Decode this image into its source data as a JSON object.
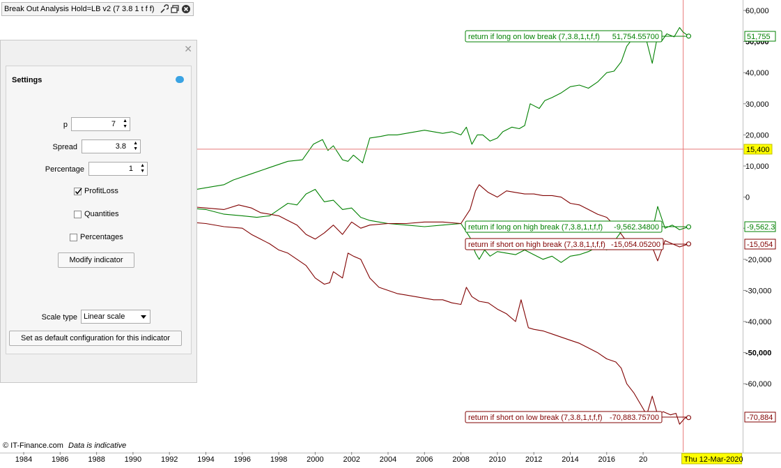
{
  "window": {
    "title": "Break Out Analysis Hold=LB v2 (7 3.8 1 t f f)"
  },
  "settings": {
    "title": "Settings",
    "p_label": "p",
    "p_value": "7",
    "spread_label": "Spread",
    "spread_value": "3.8",
    "percentage_label": "Percentage",
    "percentage_value": "1",
    "profitloss_label": "ProfitLoss",
    "profitloss_checked": true,
    "quantities_label": "Quantities",
    "quantities_checked": false,
    "percentages_label": "Percentages",
    "percentages_checked": false,
    "modify_button": "Modify indicator",
    "scale_type_label": "Scale type",
    "scale_type_value": "Linear scale",
    "default_button": "Set as default configuration for this indicator"
  },
  "footer": {
    "copyright": "© IT-Finance.com",
    "note": "Data is indicative"
  },
  "chart_data": {
    "type": "line",
    "x_ticks": [
      "1984",
      "1986",
      "1988",
      "1990",
      "1992",
      "1994",
      "1996",
      "1998",
      "2000",
      "2002",
      "2004",
      "2006",
      "2008",
      "2010",
      "2012",
      "2014",
      "2016",
      "20"
    ],
    "x_range": [
      1983,
      2021.2
    ],
    "cursor_date_label": "Thu 12-Mar-2020",
    "y_ticks": [
      "60,000",
      "50,000",
      "40,000",
      "30,000",
      "20,000",
      "10,000",
      "0",
      "-10,000",
      "-20,000",
      "-30,000",
      "-40,000",
      "-50,000",
      "-60,000"
    ],
    "y_tick_values": [
      60000,
      50000,
      40000,
      30000,
      20000,
      10000,
      0,
      -10000,
      -20000,
      -30000,
      -40000,
      -50000,
      -60000
    ],
    "ylim": [
      -75000,
      62000
    ],
    "crosshair": {
      "y": 15400,
      "label": "15,400",
      "x": 2020.2
    },
    "colors": {
      "green": "#008000",
      "red": "#800000",
      "crosshair": "#e87878",
      "highlight": "#ffff00"
    },
    "series": [
      {
        "name": "return if long on low break (7,3.8,1,t,f,f)",
        "value_text": "51,754.55700",
        "last_label": "51,755",
        "color": "#008000",
        "x": [
          1993.0,
          1994.0,
          1995.0,
          1995.5,
          1996.5,
          1997.5,
          1998.5,
          1999.3,
          1999.9,
          2000.4,
          2000.7,
          2001.0,
          2001.5,
          2001.8,
          2002.1,
          2002.6,
          2003.0,
          2003.6,
          2004.0,
          2004.5,
          2005.0,
          2005.5,
          2006.0,
          2006.5,
          2007.0,
          2007.5,
          2008.0,
          2008.3,
          2008.6,
          2008.9,
          2009.2,
          2009.6,
          2010.0,
          2010.3,
          2010.8,
          2011.2,
          2011.5,
          2011.8,
          2012.3,
          2012.6,
          2013.0,
          2013.5,
          2014.0,
          2014.5,
          2015.0,
          2015.5,
          2016.0,
          2016.4,
          2016.8,
          2017.1,
          2017.3,
          2017.8,
          2018.2,
          2018.5,
          2018.8,
          2019.0,
          2019.3,
          2019.7,
          2020.0,
          2020.2,
          2020.5
        ],
        "y": [
          2000,
          3000,
          4000,
          5500,
          7500,
          9500,
          11500,
          12000,
          17000,
          18500,
          15000,
          16500,
          12000,
          11500,
          13500,
          11000,
          19000,
          19500,
          20000,
          20000,
          20500,
          21000,
          21500,
          21000,
          20500,
          21000,
          20000,
          22500,
          17000,
          20000,
          20000,
          18000,
          19000,
          21000,
          22500,
          22000,
          23000,
          30000,
          28500,
          31000,
          32000,
          33500,
          35500,
          36000,
          35000,
          37000,
          40000,
          40500,
          43500,
          48500,
          50000,
          51000,
          50000,
          43000,
          52000,
          50000,
          52500,
          51500,
          54500,
          53000,
          51755
        ]
      },
      {
        "name": "return if long on high break (7,3.8,1,t,f,f)",
        "value_text": "-9,562.34800",
        "last_label": "-9,562.3",
        "color": "#008000",
        "x": [
          1993.0,
          1994.0,
          1995.0,
          1996.0,
          1996.8,
          1997.5,
          1998.0,
          1998.5,
          1999.0,
          1999.5,
          2000.0,
          2000.5,
          2001.0,
          2001.5,
          2002.0,
          2002.5,
          2003.0,
          2003.5,
          2004.0,
          2005.0,
          2006.0,
          2007.0,
          2008.0,
          2008.5,
          2008.8,
          2009.0,
          2009.3,
          2009.6,
          2010.0,
          2010.5,
          2011.0,
          2011.5,
          2012.0,
          2012.5,
          2013.0,
          2013.5,
          2014.0,
          2014.5,
          2015.0,
          2015.5,
          2016.0,
          2016.5,
          2017.0,
          2017.5,
          2018.0,
          2018.5,
          2018.8,
          2019.2,
          2019.6,
          2020.0,
          2020.5
        ],
        "y": [
          -3500,
          -4000,
          -5500,
          -6000,
          -6500,
          -6000,
          -4000,
          -2000,
          -2500,
          1000,
          2500,
          -1500,
          -1000,
          -4000,
          -3500,
          -6500,
          -7500,
          -8000,
          -8500,
          -9000,
          -9500,
          -9000,
          -8500,
          -13000,
          -18000,
          -20000,
          -17000,
          -19000,
          -17500,
          -18000,
          -18500,
          -17000,
          -18500,
          -20000,
          -19000,
          -21000,
          -19000,
          -18500,
          -17500,
          -16000,
          -17000,
          -13500,
          -9500,
          -10000,
          -9500,
          -11000,
          -3000,
          -10000,
          -9000,
          -10500,
          -9562
        ]
      },
      {
        "name": "return if short on high break (7,3.8,1,t,f,f)",
        "value_text": "-15,054.05200",
        "last_label": "-15,054",
        "color": "#800000",
        "x": [
          1993.0,
          1994.0,
          1995.0,
          1995.8,
          1996.5,
          1997.0,
          1998.0,
          1998.5,
          1999.0,
          1999.5,
          2000.0,
          2000.5,
          2001.0,
          2001.5,
          2002.0,
          2002.5,
          2003.0,
          2004.0,
          2005.0,
          2006.0,
          2007.0,
          2008.0,
          2008.5,
          2008.8,
          2009.0,
          2009.5,
          2010.0,
          2010.5,
          2011.0,
          2011.5,
          2012.0,
          2012.5,
          2013.0,
          2013.5,
          2014.0,
          2014.5,
          2015.0,
          2015.5,
          2016.0,
          2016.5,
          2017.0,
          2017.5,
          2018.0,
          2018.5,
          2018.8,
          2019.2,
          2019.6,
          2020.0,
          2020.5
        ],
        "y": [
          -3000,
          -3500,
          -4000,
          -2500,
          -3500,
          -5000,
          -6000,
          -7500,
          -9000,
          -12000,
          -13500,
          -11500,
          -9000,
          -12000,
          -8000,
          -10000,
          -9000,
          -8500,
          -8500,
          -8000,
          -8000,
          -8500,
          -4000,
          2000,
          4000,
          1500,
          0,
          2000,
          1500,
          1000,
          1000,
          500,
          500,
          0,
          -2000,
          -2500,
          -4000,
          -5500,
          -6500,
          -9500,
          -13500,
          -14000,
          -15000,
          -16000,
          -20500,
          -14000,
          -15000,
          -16000,
          -15054
        ]
      },
      {
        "name": "return if short on low break (7,3.8,1,t,f,f)",
        "value_text": "-70,883.75700",
        "last_label": "-70,884",
        "color": "#800000",
        "x": [
          1993.0,
          1994.0,
          1995.0,
          1996.0,
          1996.5,
          1997.0,
          1997.5,
          1998.0,
          1998.5,
          1999.0,
          1999.5,
          2000.0,
          2000.5,
          2000.8,
          2001.0,
          2001.5,
          2001.8,
          2002.1,
          2002.5,
          2003.0,
          2003.5,
          2004.0,
          2004.5,
          2005.0,
          2005.5,
          2006.0,
          2006.5,
          2007.0,
          2007.5,
          2008.0,
          2008.3,
          2008.6,
          2009.0,
          2009.5,
          2010.0,
          2010.5,
          2011.0,
          2011.3,
          2011.7,
          2012.0,
          2012.5,
          2013.0,
          2013.5,
          2014.0,
          2014.5,
          2015.0,
          2015.5,
          2016.0,
          2016.5,
          2016.8,
          2017.1,
          2017.5,
          2018.0,
          2018.2,
          2018.5,
          2018.8,
          2019.1,
          2019.5,
          2019.8,
          2020.0,
          2020.3,
          2020.5
        ],
        "y": [
          -8000,
          -8500,
          -9500,
          -10000,
          -12000,
          -13500,
          -15000,
          -17000,
          -18000,
          -20000,
          -22000,
          -26000,
          -28000,
          -27500,
          -24000,
          -26000,
          -18000,
          -19000,
          -20000,
          -26000,
          -29000,
          -30000,
          -31000,
          -31500,
          -32000,
          -32500,
          -33000,
          -33000,
          -34000,
          -34500,
          -29000,
          -32000,
          -33500,
          -34000,
          -36000,
          -37500,
          -40000,
          -33000,
          -42000,
          -42500,
          -43000,
          -44000,
          -45000,
          -46000,
          -47000,
          -48500,
          -50000,
          -52000,
          -53000,
          -55000,
          -60000,
          -63000,
          -68000,
          -70000,
          -64000,
          -70000,
          -69000,
          -70000,
          -69500,
          -73000,
          -71000,
          -70884
        ]
      }
    ],
    "legend_placement": "inline labels near series"
  }
}
